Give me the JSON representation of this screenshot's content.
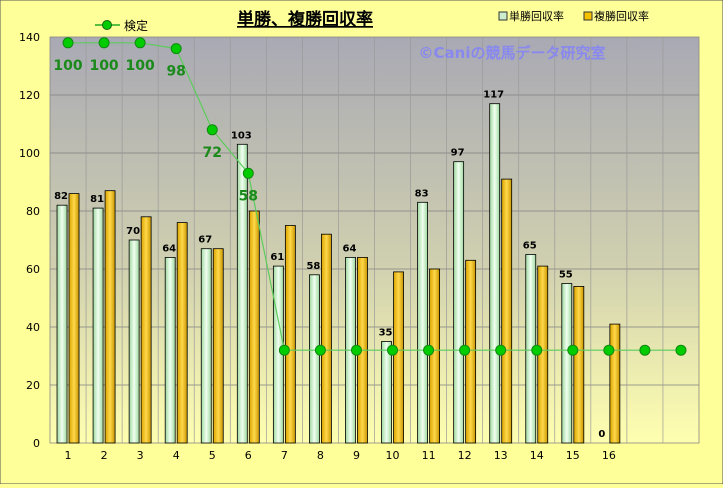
{
  "chart_data": {
    "type": "bar",
    "title": "単勝、複勝回収率",
    "watermark": "©Caniの競馬データ研究室",
    "categories": [
      "1",
      "2",
      "3",
      "4",
      "5",
      "6",
      "7",
      "8",
      "9",
      "10",
      "11",
      "12",
      "13",
      "14",
      "15",
      "16"
    ],
    "ylim": [
      0,
      140
    ],
    "yticks": [
      0,
      20,
      40,
      60,
      80,
      100,
      120,
      140
    ],
    "grid": true,
    "legend_position": "top",
    "series": [
      {
        "name": "単勝回収率",
        "color": "#cdeecd",
        "values": [
          82,
          81,
          70,
          64,
          67,
          103,
          61,
          58,
          64,
          35,
          83,
          97,
          117,
          65,
          55,
          0
        ],
        "labels": [
          "82",
          "81",
          "70",
          "64",
          "67",
          "103",
          "61",
          "58",
          "64",
          "35",
          "83",
          "97",
          "117",
          "65",
          "55",
          "0"
        ]
      },
      {
        "name": "複勝回収率",
        "color": "#f5c200",
        "values": [
          86,
          87,
          78,
          76,
          67,
          80,
          75,
          72,
          64,
          59,
          60,
          63,
          91,
          61,
          54,
          41
        ]
      }
    ],
    "line_series": {
      "name": "検定",
      "color": "#22aa22",
      "x": [
        1,
        2,
        3,
        4,
        5,
        6,
        7,
        8,
        9,
        10,
        11,
        12,
        13,
        14,
        15,
        16,
        17,
        18
      ],
      "y": [
        138,
        138,
        138,
        136,
        108,
        93,
        32,
        32,
        32,
        32,
        32,
        32,
        32,
        32,
        32,
        32,
        32,
        32
      ],
      "labels": [
        "100",
        "100",
        "100",
        "98",
        "72",
        "58",
        "",
        "",
        "",
        "",
        "",
        "",
        "",
        "",
        "",
        "",
        "",
        ""
      ]
    }
  }
}
